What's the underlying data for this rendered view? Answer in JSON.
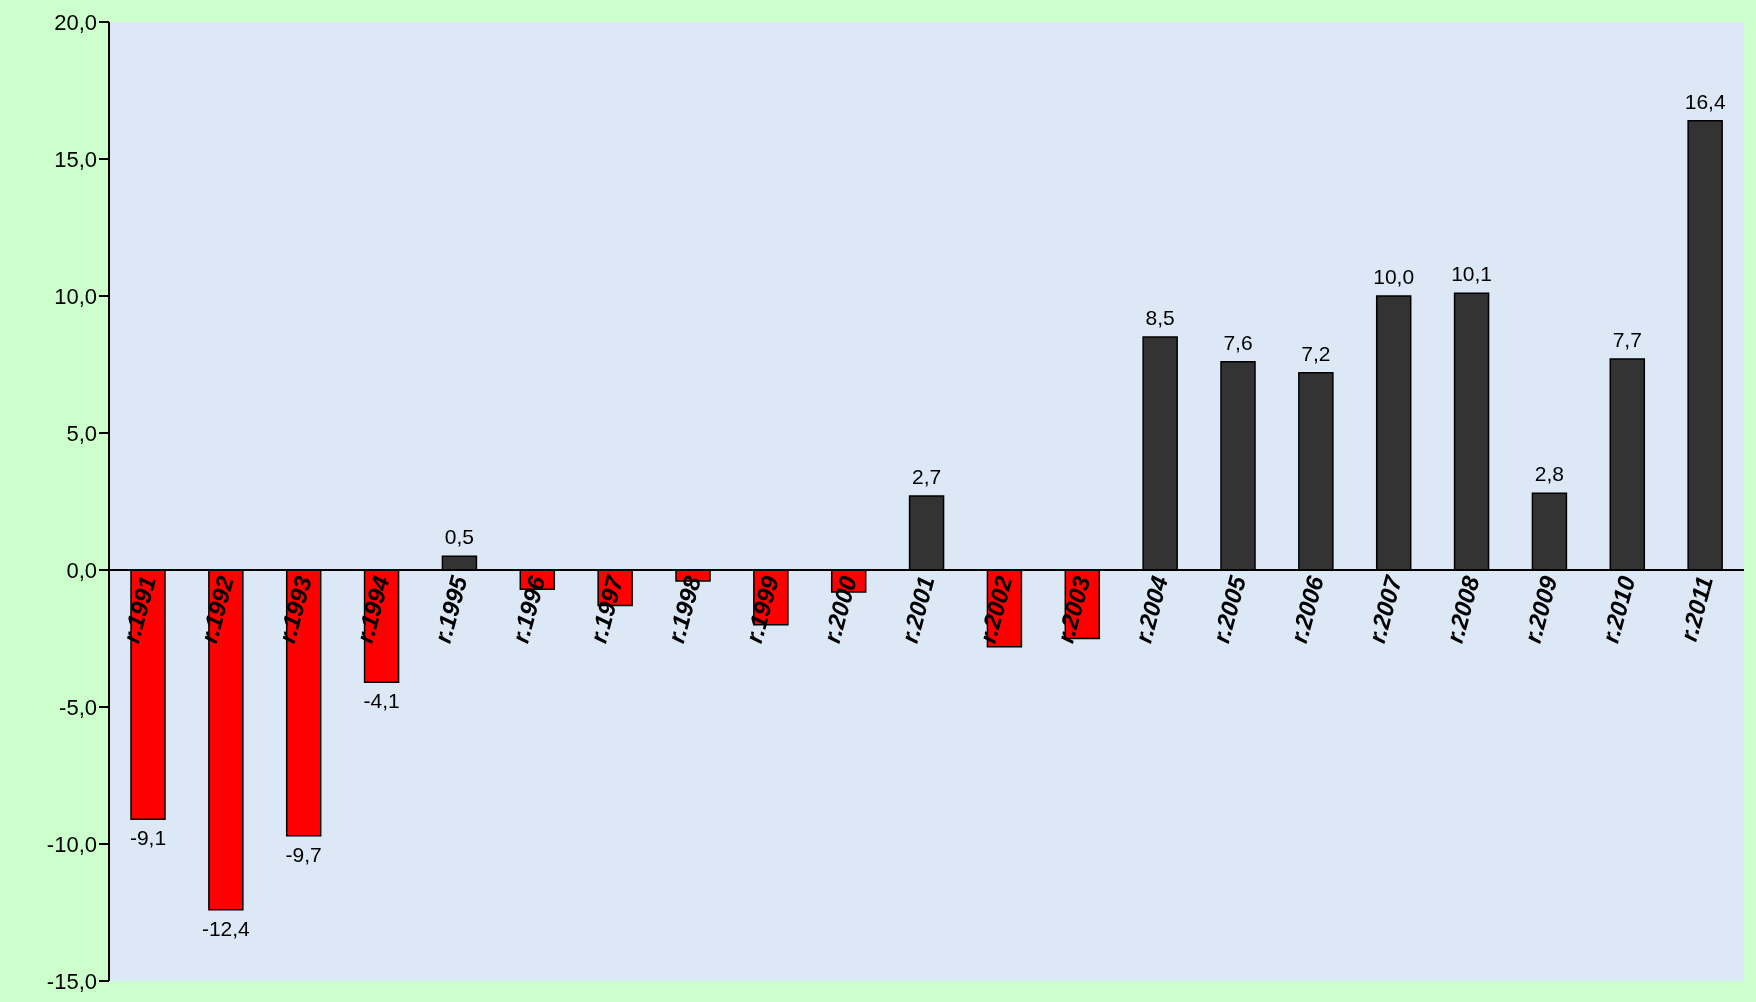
{
  "chart_data": {
    "type": "bar",
    "categories": [
      "r.1991",
      "r.1992",
      "r.1993",
      "r.1994",
      "r.1995",
      "r.1996",
      "r.1997",
      "r.1998",
      "r.1999",
      "r.2000",
      "r.2001",
      "r.2002",
      "r.2003",
      "r.2004",
      "r.2005",
      "r.2006",
      "r.2007",
      "r.2008",
      "r.2009",
      "r.2010",
      "r.2011"
    ],
    "values": [
      -9.1,
      -12.4,
      -9.7,
      -4.1,
      0.5,
      -0.7,
      -1.3,
      -0.4,
      -2.0,
      -0.8,
      2.7,
      -2.8,
      -2.5,
      8.5,
      7.6,
      7.2,
      10.0,
      10.1,
      2.8,
      7.7,
      16.4
    ],
    "colors": [
      "#ff0000",
      "#ff0000",
      "#ff0000",
      "#ff0000",
      "#333333",
      "#ff0000",
      "#ff0000",
      "#ff0000",
      "#ff0000",
      "#ff0000",
      "#333333",
      "#ff0000",
      "#ff0000",
      "#333333",
      "#333333",
      "#333333",
      "#333333",
      "#333333",
      "#333333",
      "#333333",
      "#333333"
    ],
    "value_labels": [
      "-9,1",
      "-12,4",
      "-9,7",
      "-4,1",
      "0,5",
      null,
      null,
      null,
      null,
      null,
      "2,7",
      null,
      null,
      "8,5",
      "7,6",
      "7,2",
      "10,0",
      "10,1",
      "2,8",
      "7,7",
      "16,4"
    ],
    "ylim": [
      -15,
      20
    ],
    "yticks": [
      {
        "value": -15,
        "label": "-15,0"
      },
      {
        "value": -10,
        "label": "-10,0"
      },
      {
        "value": -5,
        "label": "-5,0"
      },
      {
        "value": 0,
        "label": "0,0"
      },
      {
        "value": 5,
        "label": "5,0"
      },
      {
        "value": 10,
        "label": "10,0"
      },
      {
        "value": 15,
        "label": "15,0"
      },
      {
        "value": 20,
        "label": "20,0"
      }
    ],
    "grid": false
  }
}
